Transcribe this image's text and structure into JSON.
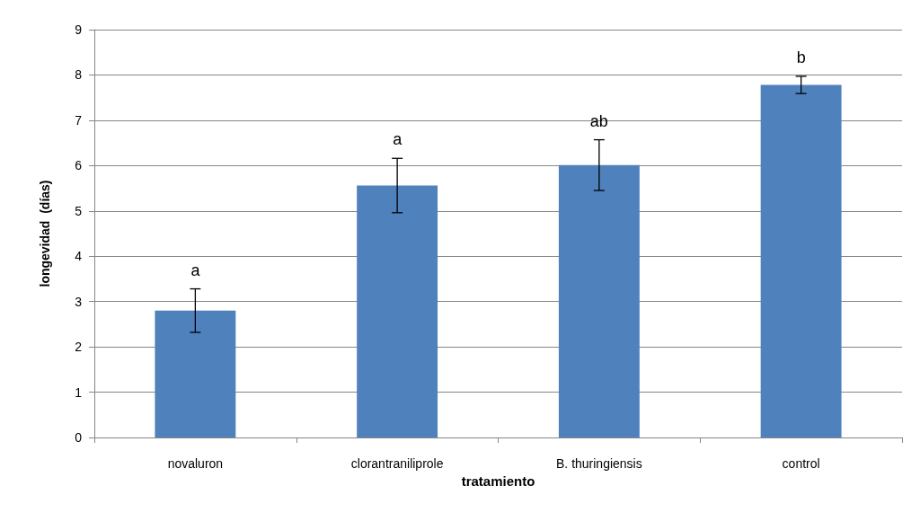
{
  "chart_data": {
    "type": "bar",
    "xlabel": "tratamiento",
    "ylabel": "longevidad  (días)",
    "categories": [
      "novaluron",
      "clorantraniliprole",
      "B. thuringiensis",
      "control"
    ],
    "values": [
      2.8,
      5.56,
      6.01,
      7.78
    ],
    "errors": [
      0.48,
      0.6,
      0.56,
      0.19
    ],
    "color": "#4f81bd",
    "ylim": [
      0,
      9
    ],
    "yticks": [
      0,
      1,
      2,
      3,
      4,
      5,
      6,
      7,
      8,
      9
    ],
    "grid": "y",
    "annotations": [
      {
        "text": "a",
        "x": "novaluron",
        "y": 3.28
      },
      {
        "text": "a",
        "x": "clorantraniliprole",
        "y": 6.16
      },
      {
        "text": "ab",
        "x": "B. thuringiensis",
        "y": 6.57
      },
      {
        "text": "b",
        "x": "control",
        "y": 7.97
      }
    ]
  }
}
